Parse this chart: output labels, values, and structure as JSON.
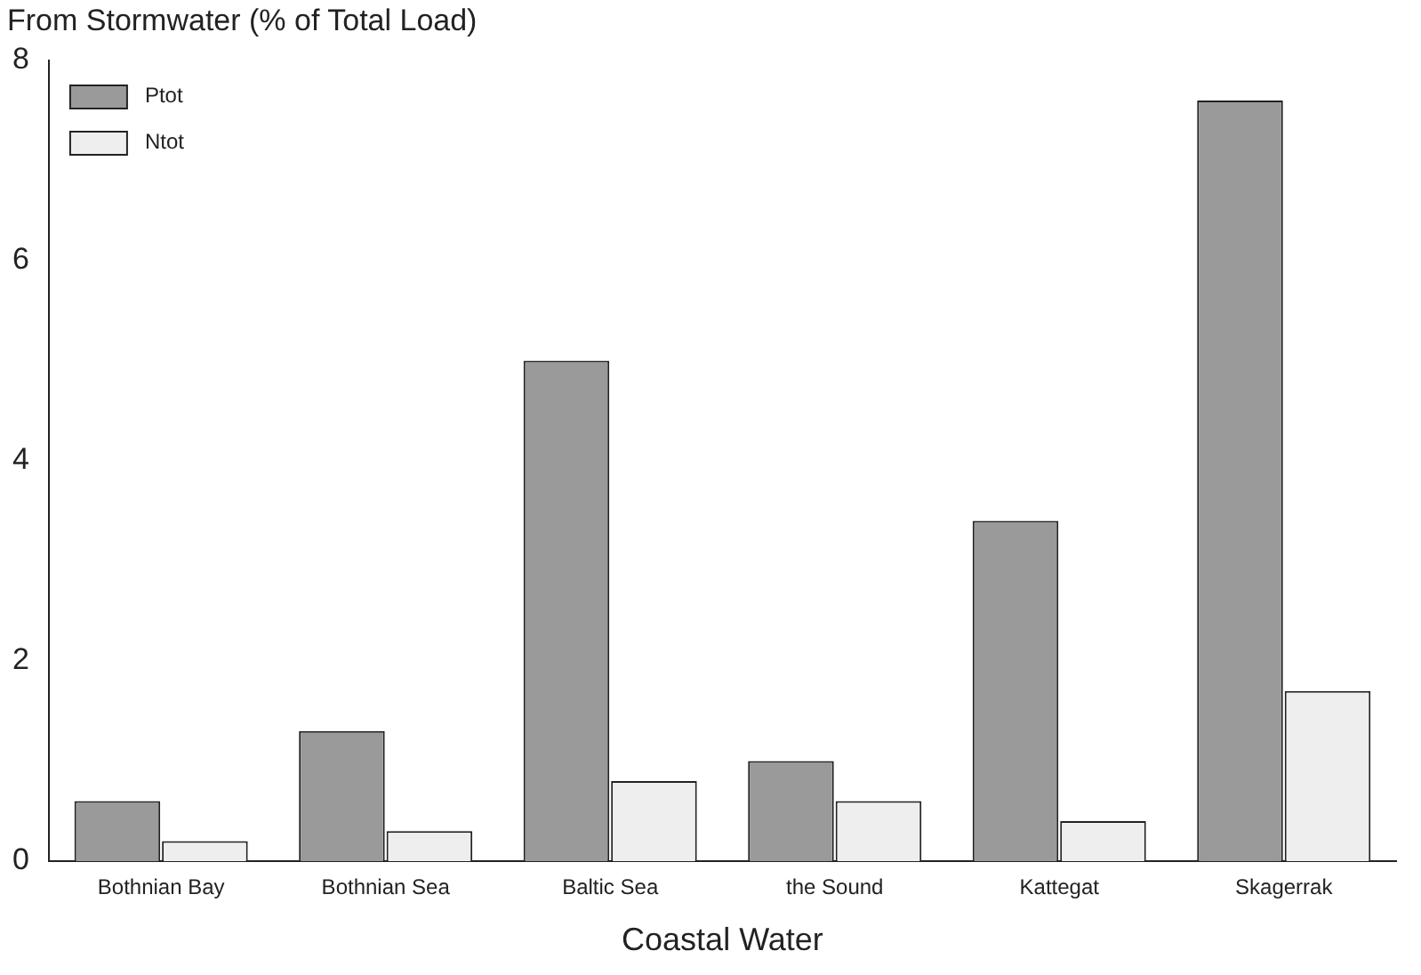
{
  "chart_data": {
    "type": "bar",
    "ylabel": "From Stormwater (% of Total Load)",
    "xlabel": "Coastal Water",
    "categories": [
      "Bothnian Bay",
      "Bothnian Sea",
      "Baltic Sea",
      "the Sound",
      "Kattegat",
      "Skagerrak"
    ],
    "series": [
      {
        "name": "Ptot",
        "color": "#9a9a9a",
        "values": [
          0.6,
          1.3,
          5.0,
          1.0,
          3.4,
          7.6
        ]
      },
      {
        "name": "Ntot",
        "color": "#eeeeee",
        "values": [
          0.2,
          0.3,
          0.8,
          0.6,
          0.4,
          1.7
        ]
      }
    ],
    "ylim": [
      0,
      8
    ],
    "yticks": [
      0,
      2,
      4,
      6,
      8
    ],
    "grid": false,
    "legend": "top left"
  }
}
